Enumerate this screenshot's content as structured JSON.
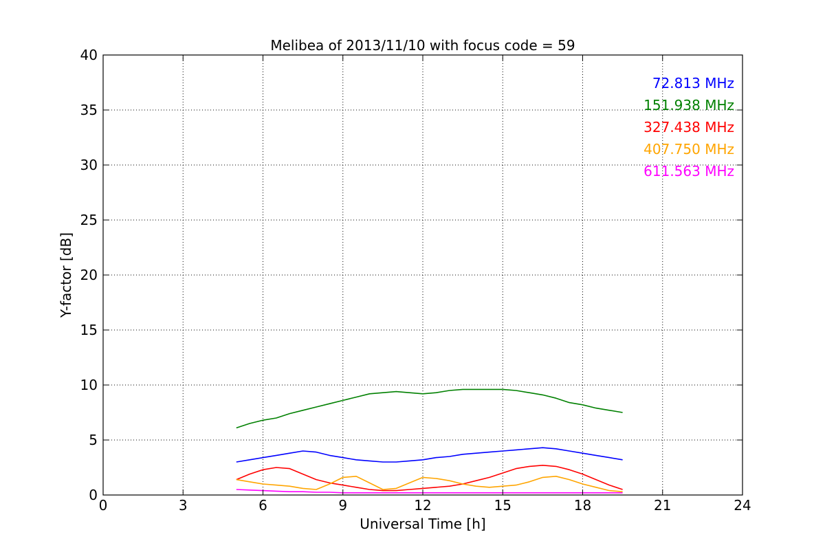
{
  "chart_data": {
    "type": "line",
    "title": "Melibea of 2013/11/10 with focus code = 59",
    "xlabel": "Universal Time [h]",
    "ylabel": "Y-factor [dB]",
    "xlim": [
      0,
      24
    ],
    "ylim": [
      0,
      40
    ],
    "xticks": [
      0,
      3,
      6,
      9,
      12,
      15,
      18,
      21,
      24
    ],
    "yticks": [
      0,
      5,
      10,
      15,
      20,
      25,
      30,
      35,
      40
    ],
    "grid": true,
    "legend_position": "top-right",
    "x": [
      5.0,
      5.5,
      6.0,
      6.5,
      7.0,
      7.5,
      8.0,
      8.5,
      9.0,
      9.5,
      10.0,
      10.5,
      11.0,
      11.5,
      12.0,
      12.5,
      13.0,
      13.5,
      14.0,
      14.5,
      15.0,
      15.5,
      16.0,
      16.5,
      17.0,
      17.5,
      18.0,
      18.5,
      19.0,
      19.5
    ],
    "series": [
      {
        "name": "72.813 MHz",
        "color": "#0000ff",
        "values": [
          3.0,
          3.2,
          3.4,
          3.6,
          3.8,
          4.0,
          3.9,
          3.6,
          3.4,
          3.2,
          3.1,
          3.0,
          3.0,
          3.1,
          3.2,
          3.4,
          3.5,
          3.7,
          3.8,
          3.9,
          4.0,
          4.1,
          4.2,
          4.3,
          4.2,
          4.0,
          3.8,
          3.6,
          3.4,
          3.2
        ]
      },
      {
        "name": "151.938 MHz",
        "color": "#008000",
        "values": [
          6.1,
          6.5,
          6.8,
          7.0,
          7.4,
          7.7,
          8.0,
          8.3,
          8.6,
          8.9,
          9.2,
          9.3,
          9.4,
          9.3,
          9.2,
          9.3,
          9.5,
          9.6,
          9.6,
          9.6,
          9.6,
          9.5,
          9.3,
          9.1,
          8.8,
          8.4,
          8.2,
          7.9,
          7.7,
          7.5
        ]
      },
      {
        "name": "327.438 MHz",
        "color": "#ff0000",
        "values": [
          1.4,
          1.9,
          2.3,
          2.5,
          2.4,
          1.9,
          1.4,
          1.1,
          0.9,
          0.7,
          0.5,
          0.4,
          0.4,
          0.5,
          0.6,
          0.7,
          0.8,
          1.0,
          1.3,
          1.6,
          2.0,
          2.4,
          2.6,
          2.7,
          2.6,
          2.3,
          1.9,
          1.4,
          0.9,
          0.5
        ]
      },
      {
        "name": "407.750 MHz",
        "color": "#ffa500",
        "values": [
          1.4,
          1.2,
          1.0,
          0.9,
          0.8,
          0.6,
          0.5,
          1.0,
          1.6,
          1.7,
          1.1,
          0.5,
          0.6,
          1.1,
          1.6,
          1.5,
          1.3,
          1.0,
          0.8,
          0.7,
          0.8,
          0.9,
          1.2,
          1.6,
          1.7,
          1.4,
          1.0,
          0.7,
          0.4,
          0.3
        ]
      },
      {
        "name": "611.563 MHz",
        "color": "#ff00ff",
        "values": [
          0.5,
          0.45,
          0.4,
          0.35,
          0.3,
          0.3,
          0.25,
          0.25,
          0.2,
          0.2,
          0.2,
          0.2,
          0.2,
          0.2,
          0.2,
          0.2,
          0.2,
          0.2,
          0.2,
          0.2,
          0.2,
          0.2,
          0.2,
          0.2,
          0.2,
          0.2,
          0.2,
          0.2,
          0.2,
          0.2
        ]
      }
    ]
  }
}
